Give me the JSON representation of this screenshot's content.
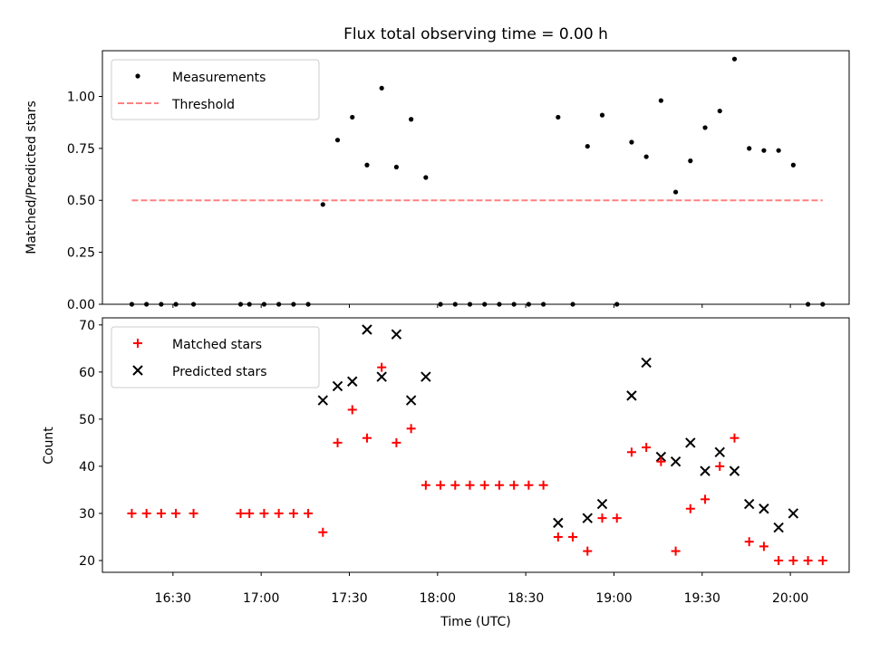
{
  "chart_data": [
    {
      "type": "scatter",
      "title": "Flux total observing time = 0.00 h",
      "xlabel": "",
      "ylabel": "Matched/Predicted stars",
      "ylim": [
        0,
        1.22
      ],
      "yticks": [
        0.0,
        0.25,
        0.5,
        0.75,
        1.0
      ],
      "ytick_labels": [
        "0.00",
        "0.25",
        "0.50",
        "0.75",
        "1.00"
      ],
      "legend": {
        "position": "top-left",
        "entries": [
          "Measurements",
          "Threshold"
        ]
      },
      "series": [
        {
          "name": "Measurements",
          "marker": "dot",
          "color": "#000000",
          "points": [
            [
              "16:16",
              0.0
            ],
            [
              "16:21",
              0.0
            ],
            [
              "16:26",
              0.0
            ],
            [
              "16:31",
              0.0
            ],
            [
              "16:37",
              0.0
            ],
            [
              "16:53",
              0.0
            ],
            [
              "16:56",
              0.0
            ],
            [
              "17:01",
              0.0
            ],
            [
              "17:06",
              0.0
            ],
            [
              "17:11",
              0.0
            ],
            [
              "17:16",
              0.0
            ],
            [
              "17:21",
              0.48
            ],
            [
              "17:26",
              0.79
            ],
            [
              "17:31",
              0.9
            ],
            [
              "17:36",
              0.67
            ],
            [
              "17:41",
              1.04
            ],
            [
              "17:46",
              0.66
            ],
            [
              "17:51",
              0.89
            ],
            [
              "17:56",
              0.61
            ],
            [
              "18:01",
              0.0
            ],
            [
              "18:06",
              0.0
            ],
            [
              "18:11",
              0.0
            ],
            [
              "18:16",
              0.0
            ],
            [
              "18:21",
              0.0
            ],
            [
              "18:26",
              0.0
            ],
            [
              "18:31",
              0.0
            ],
            [
              "18:36",
              0.0
            ],
            [
              "18:41",
              0.9
            ],
            [
              "18:46",
              0.0
            ],
            [
              "18:51",
              0.76
            ],
            [
              "18:56",
              0.91
            ],
            [
              "19:01",
              0.0
            ],
            [
              "19:06",
              0.78
            ],
            [
              "19:11",
              0.71
            ],
            [
              "19:16",
              0.98
            ],
            [
              "19:21",
              0.54
            ],
            [
              "19:26",
              0.69
            ],
            [
              "19:31",
              0.85
            ],
            [
              "19:36",
              0.93
            ],
            [
              "19:41",
              1.18
            ],
            [
              "19:46",
              0.75
            ],
            [
              "19:51",
              0.74
            ],
            [
              "19:56",
              0.74
            ],
            [
              "20:01",
              0.67
            ],
            [
              "20:06",
              0.0
            ],
            [
              "20:11",
              0.0
            ]
          ]
        },
        {
          "name": "Threshold",
          "style": "dashed",
          "color": "#ff8080",
          "points": [
            [
              "16:16",
              0.5
            ],
            [
              "20:11",
              0.5
            ]
          ]
        }
      ]
    },
    {
      "type": "scatter",
      "title": "",
      "xlabel": "Time (UTC)",
      "ylabel": "Count",
      "xlim": [
        "16:06",
        "20:20"
      ],
      "xticks": [
        "16:30",
        "17:00",
        "17:30",
        "18:00",
        "18:30",
        "19:00",
        "19:30",
        "20:00"
      ],
      "ylim": [
        17.5,
        71.5
      ],
      "yticks": [
        20,
        30,
        40,
        50,
        60,
        70
      ],
      "legend": {
        "position": "top-left",
        "entries": [
          "Matched stars",
          "Predicted stars"
        ]
      },
      "series": [
        {
          "name": "Matched stars",
          "marker": "plus",
          "color": "#ff0000",
          "points": [
            [
              "16:16",
              30
            ],
            [
              "16:21",
              30
            ],
            [
              "16:26",
              30
            ],
            [
              "16:31",
              30
            ],
            [
              "16:37",
              30
            ],
            [
              "16:53",
              30
            ],
            [
              "16:56",
              30
            ],
            [
              "17:01",
              30
            ],
            [
              "17:06",
              30
            ],
            [
              "17:11",
              30
            ],
            [
              "17:16",
              30
            ],
            [
              "17:21",
              26
            ],
            [
              "17:26",
              45
            ],
            [
              "17:31",
              52
            ],
            [
              "17:36",
              46
            ],
            [
              "17:41",
              61
            ],
            [
              "17:46",
              45
            ],
            [
              "17:51",
              48
            ],
            [
              "17:56",
              36
            ],
            [
              "18:01",
              36
            ],
            [
              "18:06",
              36
            ],
            [
              "18:11",
              36
            ],
            [
              "18:16",
              36
            ],
            [
              "18:21",
              36
            ],
            [
              "18:26",
              36
            ],
            [
              "18:31",
              36
            ],
            [
              "18:36",
              36
            ],
            [
              "18:41",
              25
            ],
            [
              "18:46",
              25
            ],
            [
              "18:51",
              22
            ],
            [
              "18:56",
              29
            ],
            [
              "19:01",
              29
            ],
            [
              "19:06",
              43
            ],
            [
              "19:11",
              44
            ],
            [
              "19:16",
              41
            ],
            [
              "19:21",
              22
            ],
            [
              "19:26",
              31
            ],
            [
              "19:31",
              33
            ],
            [
              "19:36",
              40
            ],
            [
              "19:41",
              46
            ],
            [
              "19:46",
              24
            ],
            [
              "19:51",
              23
            ],
            [
              "19:56",
              20
            ],
            [
              "20:01",
              20
            ],
            [
              "20:06",
              20
            ],
            [
              "20:11",
              20
            ]
          ]
        },
        {
          "name": "Predicted stars",
          "marker": "x",
          "color": "#000000",
          "points": [
            [
              "17:21",
              54
            ],
            [
              "17:26",
              57
            ],
            [
              "17:31",
              58
            ],
            [
              "17:36",
              69
            ],
            [
              "17:41",
              59
            ],
            [
              "17:46",
              68
            ],
            [
              "17:51",
              54
            ],
            [
              "17:56",
              59
            ],
            [
              "18:41",
              28
            ],
            [
              "18:51",
              29
            ],
            [
              "18:56",
              32
            ],
            [
              "19:06",
              55
            ],
            [
              "19:11",
              62
            ],
            [
              "19:16",
              42
            ],
            [
              "19:21",
              41
            ],
            [
              "19:26",
              45
            ],
            [
              "19:31",
              39
            ],
            [
              "19:36",
              43
            ],
            [
              "19:41",
              39
            ],
            [
              "19:46",
              32
            ],
            [
              "19:51",
              31
            ],
            [
              "19:56",
              27
            ],
            [
              "20:01",
              30
            ]
          ]
        }
      ]
    }
  ]
}
